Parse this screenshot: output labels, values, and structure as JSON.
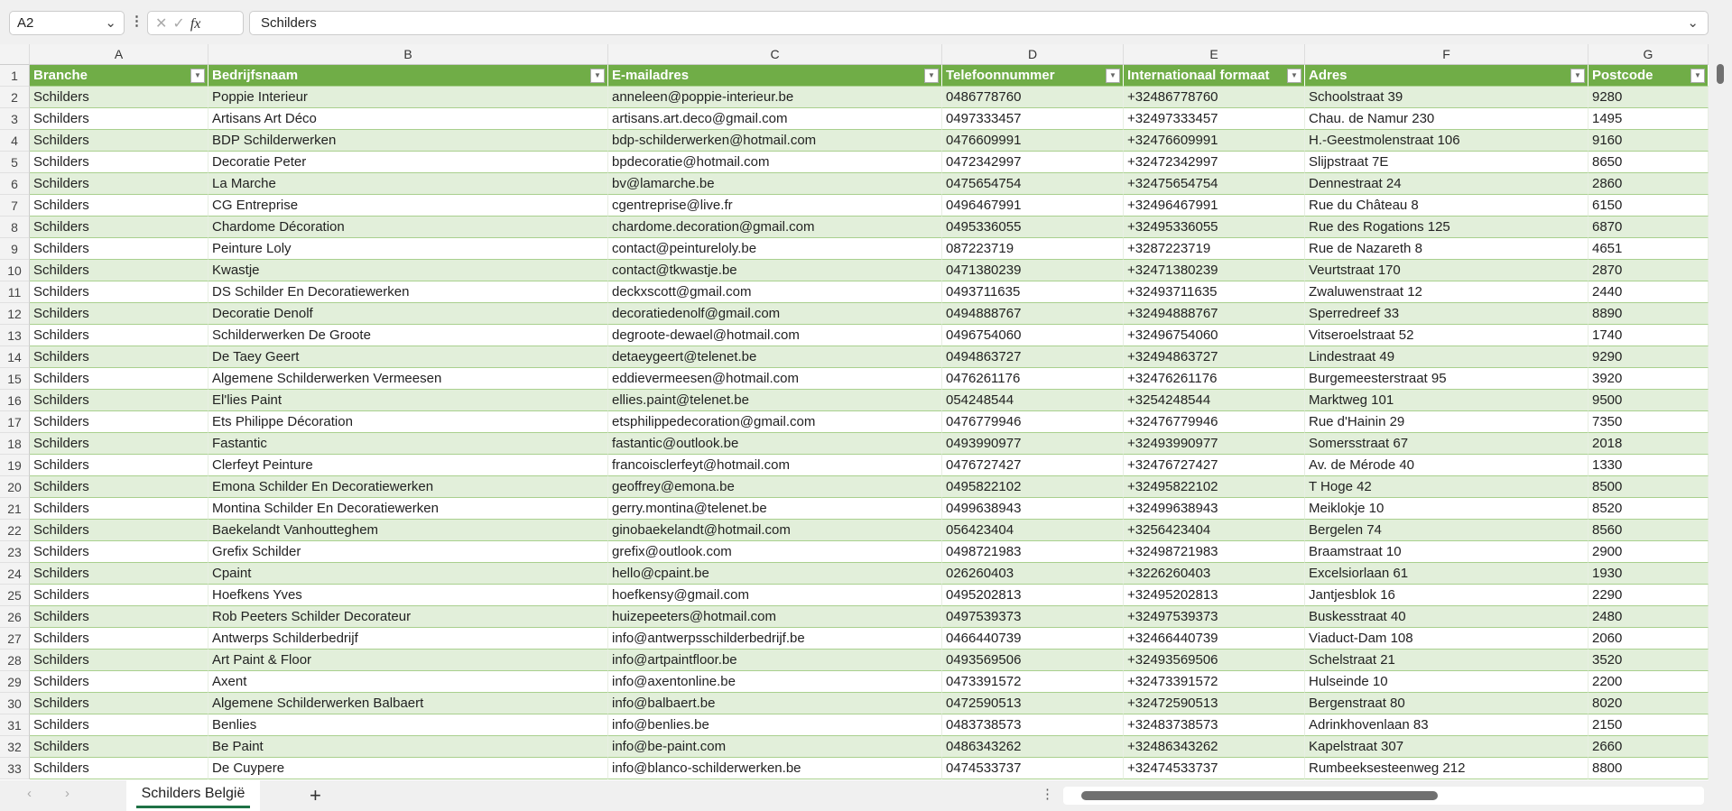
{
  "formula_bar": {
    "name_box": "A2",
    "formula": "Schilders",
    "fx": "fx"
  },
  "columns": [
    "A",
    "B",
    "C",
    "D",
    "E",
    "F",
    "G"
  ],
  "headers": [
    "Branche",
    "Bedrijfsnaam",
    "E-mailadres",
    "Telefoonnummer",
    "Internationaal formaat",
    "Adres",
    "Postcode"
  ],
  "colors": {
    "header_bg": "#70ad47",
    "band_bg": "#e2efda",
    "tab_underline": "#1e7145"
  },
  "rows": [
    [
      "Schilders",
      "Poppie Interieur",
      "anneleen@poppie-interieur.be",
      "0486778760",
      "+32486778760",
      "Schoolstraat 39",
      "9280"
    ],
    [
      "Schilders",
      "Artisans Art Déco",
      "artisans.art.deco@gmail.com",
      "0497333457",
      "+32497333457",
      "Chau. de Namur 230",
      "1495"
    ],
    [
      "Schilders",
      "BDP Schilderwerken",
      "bdp-schilderwerken@hotmail.com",
      "0476609991",
      "+32476609991",
      "H.-Geestmolenstraat 106",
      "9160"
    ],
    [
      "Schilders",
      "Decoratie Peter",
      "bpdecoratie@hotmail.com",
      "0472342997",
      "+32472342997",
      "Slijpstraat 7E",
      "8650"
    ],
    [
      "Schilders",
      "La Marche",
      "bv@lamarche.be",
      "0475654754",
      "+32475654754",
      "Dennestraat 24",
      "2860"
    ],
    [
      "Schilders",
      "CG Entreprise",
      "cgentreprise@live.fr",
      "0496467991",
      "+32496467991",
      "Rue du Château 8",
      "6150"
    ],
    [
      "Schilders",
      "Chardome Décoration",
      "chardome.decoration@gmail.com",
      "0495336055",
      "+32495336055",
      "Rue des Rogations 125",
      "6870"
    ],
    [
      "Schilders",
      "Peinture Loly",
      "contact@peintureloly.be",
      "087223719",
      "+3287223719",
      "Rue de Nazareth 8",
      "4651"
    ],
    [
      "Schilders",
      "Kwastje",
      "contact@tkwastje.be",
      "0471380239",
      "+32471380239",
      "Veurtstraat 170",
      "2870"
    ],
    [
      "Schilders",
      "DS Schilder En Decoratiewerken",
      "deckxscott@gmail.com",
      "0493711635",
      "+32493711635",
      "Zwaluwenstraat 12",
      "2440"
    ],
    [
      "Schilders",
      "Decoratie Denolf",
      "decoratiedenolf@gmail.com",
      "0494888767",
      "+32494888767",
      "Sperredreef 33",
      "8890"
    ],
    [
      "Schilders",
      "Schilderwerken De Groote",
      "degroote-dewael@hotmail.com",
      "0496754060",
      "+32496754060",
      "Vitseroelstraat 52",
      "1740"
    ],
    [
      "Schilders",
      "De Taey Geert",
      "detaeygeert@telenet.be",
      "0494863727",
      "+32494863727",
      "Lindestraat 49",
      "9290"
    ],
    [
      "Schilders",
      "Algemene Schilderwerken Vermeesen",
      "eddievermeesen@hotmail.com",
      "0476261176",
      "+32476261176",
      "Burgemeesterstraat 95",
      "3920"
    ],
    [
      "Schilders",
      "El'lies Paint",
      "ellies.paint@telenet.be",
      "054248544",
      "+3254248544",
      "Marktweg 101",
      "9500"
    ],
    [
      "Schilders",
      "Ets Philippe Décoration",
      "etsphilippedecoration@gmail.com",
      "0476779946",
      "+32476779946",
      "Rue d'Hainin 29",
      "7350"
    ],
    [
      "Schilders",
      "Fastantic",
      "fastantic@outlook.be",
      "0493990977",
      "+32493990977",
      "Somersstraat 67",
      "2018"
    ],
    [
      "Schilders",
      "Clerfeyt Peinture",
      "francoisclerfeyt@hotmail.com",
      "0476727427",
      "+32476727427",
      "Av. de Mérode 40",
      "1330"
    ],
    [
      "Schilders",
      "Emona Schilder En Decoratiewerken",
      "geoffrey@emona.be",
      "0495822102",
      "+32495822102",
      "T Hoge 42",
      "8500"
    ],
    [
      "Schilders",
      "Montina Schilder En Decoratiewerken",
      "gerry.montina@telenet.be",
      "0499638943",
      "+32499638943",
      "Meiklokje 10",
      "8520"
    ],
    [
      "Schilders",
      "Baekelandt Vanhoutteghem",
      "ginobaekelandt@hotmail.com",
      "056423404",
      "+3256423404",
      "Bergelen 74",
      "8560"
    ],
    [
      "Schilders",
      "Grefix Schilder",
      "grefix@outlook.com",
      "0498721983",
      "+32498721983",
      "Braamstraat 10",
      "2900"
    ],
    [
      "Schilders",
      "Cpaint",
      "hello@cpaint.be",
      "026260403",
      "+3226260403",
      "Excelsiorlaan 61",
      "1930"
    ],
    [
      "Schilders",
      "Hoefkens Yves",
      "hoefkensy@gmail.com",
      "0495202813",
      "+32495202813",
      "Jantjesblok 16",
      "2290"
    ],
    [
      "Schilders",
      "Rob Peeters Schilder Decorateur",
      "huizepeeters@hotmail.com",
      "0497539373",
      "+32497539373",
      "Buskesstraat 40",
      "2480"
    ],
    [
      "Schilders",
      "Antwerps Schilderbedrijf",
      "info@antwerpsschilderbedrijf.be",
      "0466440739",
      "+32466440739",
      "Viaduct-Dam 108",
      "2060"
    ],
    [
      "Schilders",
      "Art Paint & Floor",
      "info@artpaintfloor.be",
      "0493569506",
      "+32493569506",
      "Schelstraat 21",
      "3520"
    ],
    [
      "Schilders",
      "Axent",
      "info@axentonline.be",
      "0473391572",
      "+32473391572",
      "Hulseinde 10",
      "2200"
    ],
    [
      "Schilders",
      "Algemene Schilderwerken Balbaert",
      "info@balbaert.be",
      "0472590513",
      "+32472590513",
      "Bergenstraat 80",
      "8020"
    ],
    [
      "Schilders",
      "Benlies",
      "info@benlies.be",
      "0483738573",
      "+32483738573",
      "Adrinkhovenlaan 83",
      "2150"
    ],
    [
      "Schilders",
      "Be Paint",
      "info@be-paint.com",
      "0486343262",
      "+32486343262",
      "Kapelstraat 307",
      "2660"
    ],
    [
      "Schilders",
      "De Cuypere",
      "info@blanco-schilderwerken.be",
      "0474533737",
      "+32474533737",
      "Rumbeeksesteenweg 212",
      "8800"
    ]
  ],
  "sheet_tabs": {
    "active": "Schilders België",
    "add": "+"
  }
}
